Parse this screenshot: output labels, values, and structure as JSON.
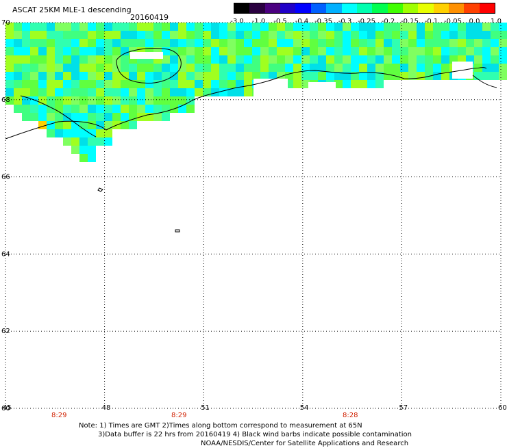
{
  "header": {
    "title": "ASCAT 25KM MLE-1 descending",
    "date": "20160419"
  },
  "colorbar": {
    "labels": [
      "-3.0",
      "-1.0",
      "-0.5",
      "-0.4",
      "-0.35",
      "-0.3",
      "-0.25",
      "-0.2",
      "-0.15",
      "-0.1",
      "-0.05",
      "0.0",
      "1.0"
    ],
    "colors": [
      "#000000",
      "#2a0040",
      "#4b0080",
      "#2000c8",
      "#0000ff",
      "#0060ff",
      "#00b0ff",
      "#00ffff",
      "#00ffb0",
      "#00ff50",
      "#40ff00",
      "#a0ff00",
      "#e8ff00",
      "#ffd000",
      "#ff9000",
      "#ff4000",
      "#ff0000"
    ]
  },
  "map": {
    "lon_range": [
      45,
      60
    ],
    "lat_range": [
      60,
      70
    ],
    "lon_ticks": [
      "45",
      "48",
      "51",
      "54",
      "57",
      "60"
    ],
    "lat_ticks": [
      "70",
      "68",
      "66",
      "64",
      "62",
      "60"
    ],
    "time_labels": [
      "8:29",
      "8:29",
      "8:28"
    ],
    "grid": "dotted"
  },
  "notes": {
    "line1": "Note: 1) Times are GMT 2)Times along bottom correspond to measurement at 65N",
    "line2": "3)Data buffer is 22 hrs from 20160419 4) Black wind barbs indicate possible contamination",
    "line3": "NOAA/NESDIS/Center for Satellite Applications and Research"
  }
}
